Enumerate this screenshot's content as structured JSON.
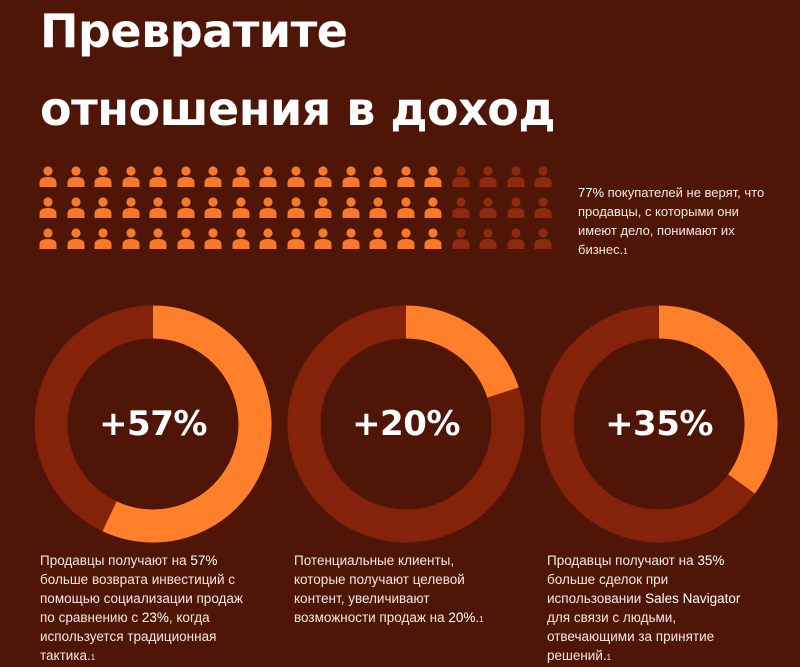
{
  "title": {
    "line1": "Превратите",
    "line2": "отношения в доход"
  },
  "colors": {
    "background": "#4f1607",
    "accent": "#ff7f2a",
    "track": "#85220a",
    "person_highlight": "#f9792b",
    "person_dim": "#8e2a0e"
  },
  "icons": {
    "person": "person-icon"
  },
  "people_grid": {
    "rows": 3,
    "columns": 19,
    "highlighted_per_row": 15,
    "highlighted_percent": 77
  },
  "stat_note": {
    "percent": "77%",
    "text": " покупателей не верят, что продавцы, с которыми они имеют дело, понимают их бизнес.",
    "footnote": "1"
  },
  "chart_data": [
    {
      "type": "pie",
      "label": "+57%",
      "values": [
        57,
        43
      ],
      "caption": {
        "part1": "Продавцы получают на ",
        "highlight1": "57%",
        "part2": " больше возврата инвестиций с помощью социализации продаж по сравнению с ",
        "highlight2": "23%",
        "part3": ", когда используется традиционная тактика.",
        "footnote": "1"
      }
    },
    {
      "type": "pie",
      "label": "+20%",
      "values": [
        20,
        80
      ],
      "caption": {
        "part1": "Потенциальные клиенты, которые получают целевой контент, увеличивают возможности продаж на ",
        "highlight1": "20%",
        "part2": ".",
        "footnote": "1"
      }
    },
    {
      "type": "pie",
      "label": "+35%",
      "values": [
        35,
        65
      ],
      "caption": {
        "part1": "Продавцы получают на ",
        "highlight1": "35%",
        "part2": " больше сделок при использовании ",
        "highlight2": "Sales Navigator",
        "part3": " для связи с людьми, отвечающими за принятие решений.",
        "footnote": "1"
      }
    }
  ]
}
